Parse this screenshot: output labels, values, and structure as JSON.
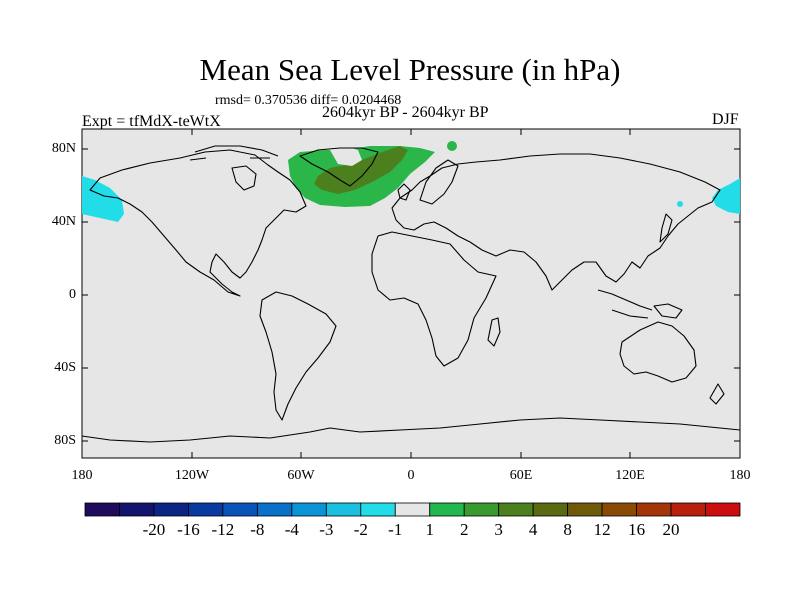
{
  "title": "Mean Sea Level Pressure (in hPa)",
  "stats": "rmsd= 0.370536 diff= 0.0204468",
  "period": "2604kyr BP - 2604kyr BP",
  "expt": "Expt = tfMdX-teWtX",
  "season": "DJF",
  "lat_labels": [
    "80N",
    "40N",
    "0",
    "40S",
    "80S"
  ],
  "lon_labels": [
    "180",
    "120W",
    "60W",
    "0",
    "60E",
    "120E",
    "180"
  ],
  "colorbar": {
    "colors": [
      "#1e0b5c",
      "#13146e",
      "#0c2585",
      "#093aa0",
      "#0a53b8",
      "#0b70c8",
      "#0a94d6",
      "#1bbfe0",
      "#22dce8",
      "#e6e6e6",
      "#23b84f",
      "#389a2f",
      "#4c7f1e",
      "#5a6a12",
      "#6f5a0a",
      "#8a4a06",
      "#a33508",
      "#b8200b",
      "#cc0e0e"
    ],
    "labels": [
      "-20",
      "-16",
      "-12",
      "-8",
      "-4",
      "-3",
      "-2",
      "-1",
      "1",
      "2",
      "3",
      "4",
      "8",
      "12",
      "16",
      "20"
    ],
    "land_color": "#e6e6e6",
    "positive_light": "#2bb64a",
    "positive_dark": "#4c7f1e",
    "negative": "#22dce8"
  }
}
